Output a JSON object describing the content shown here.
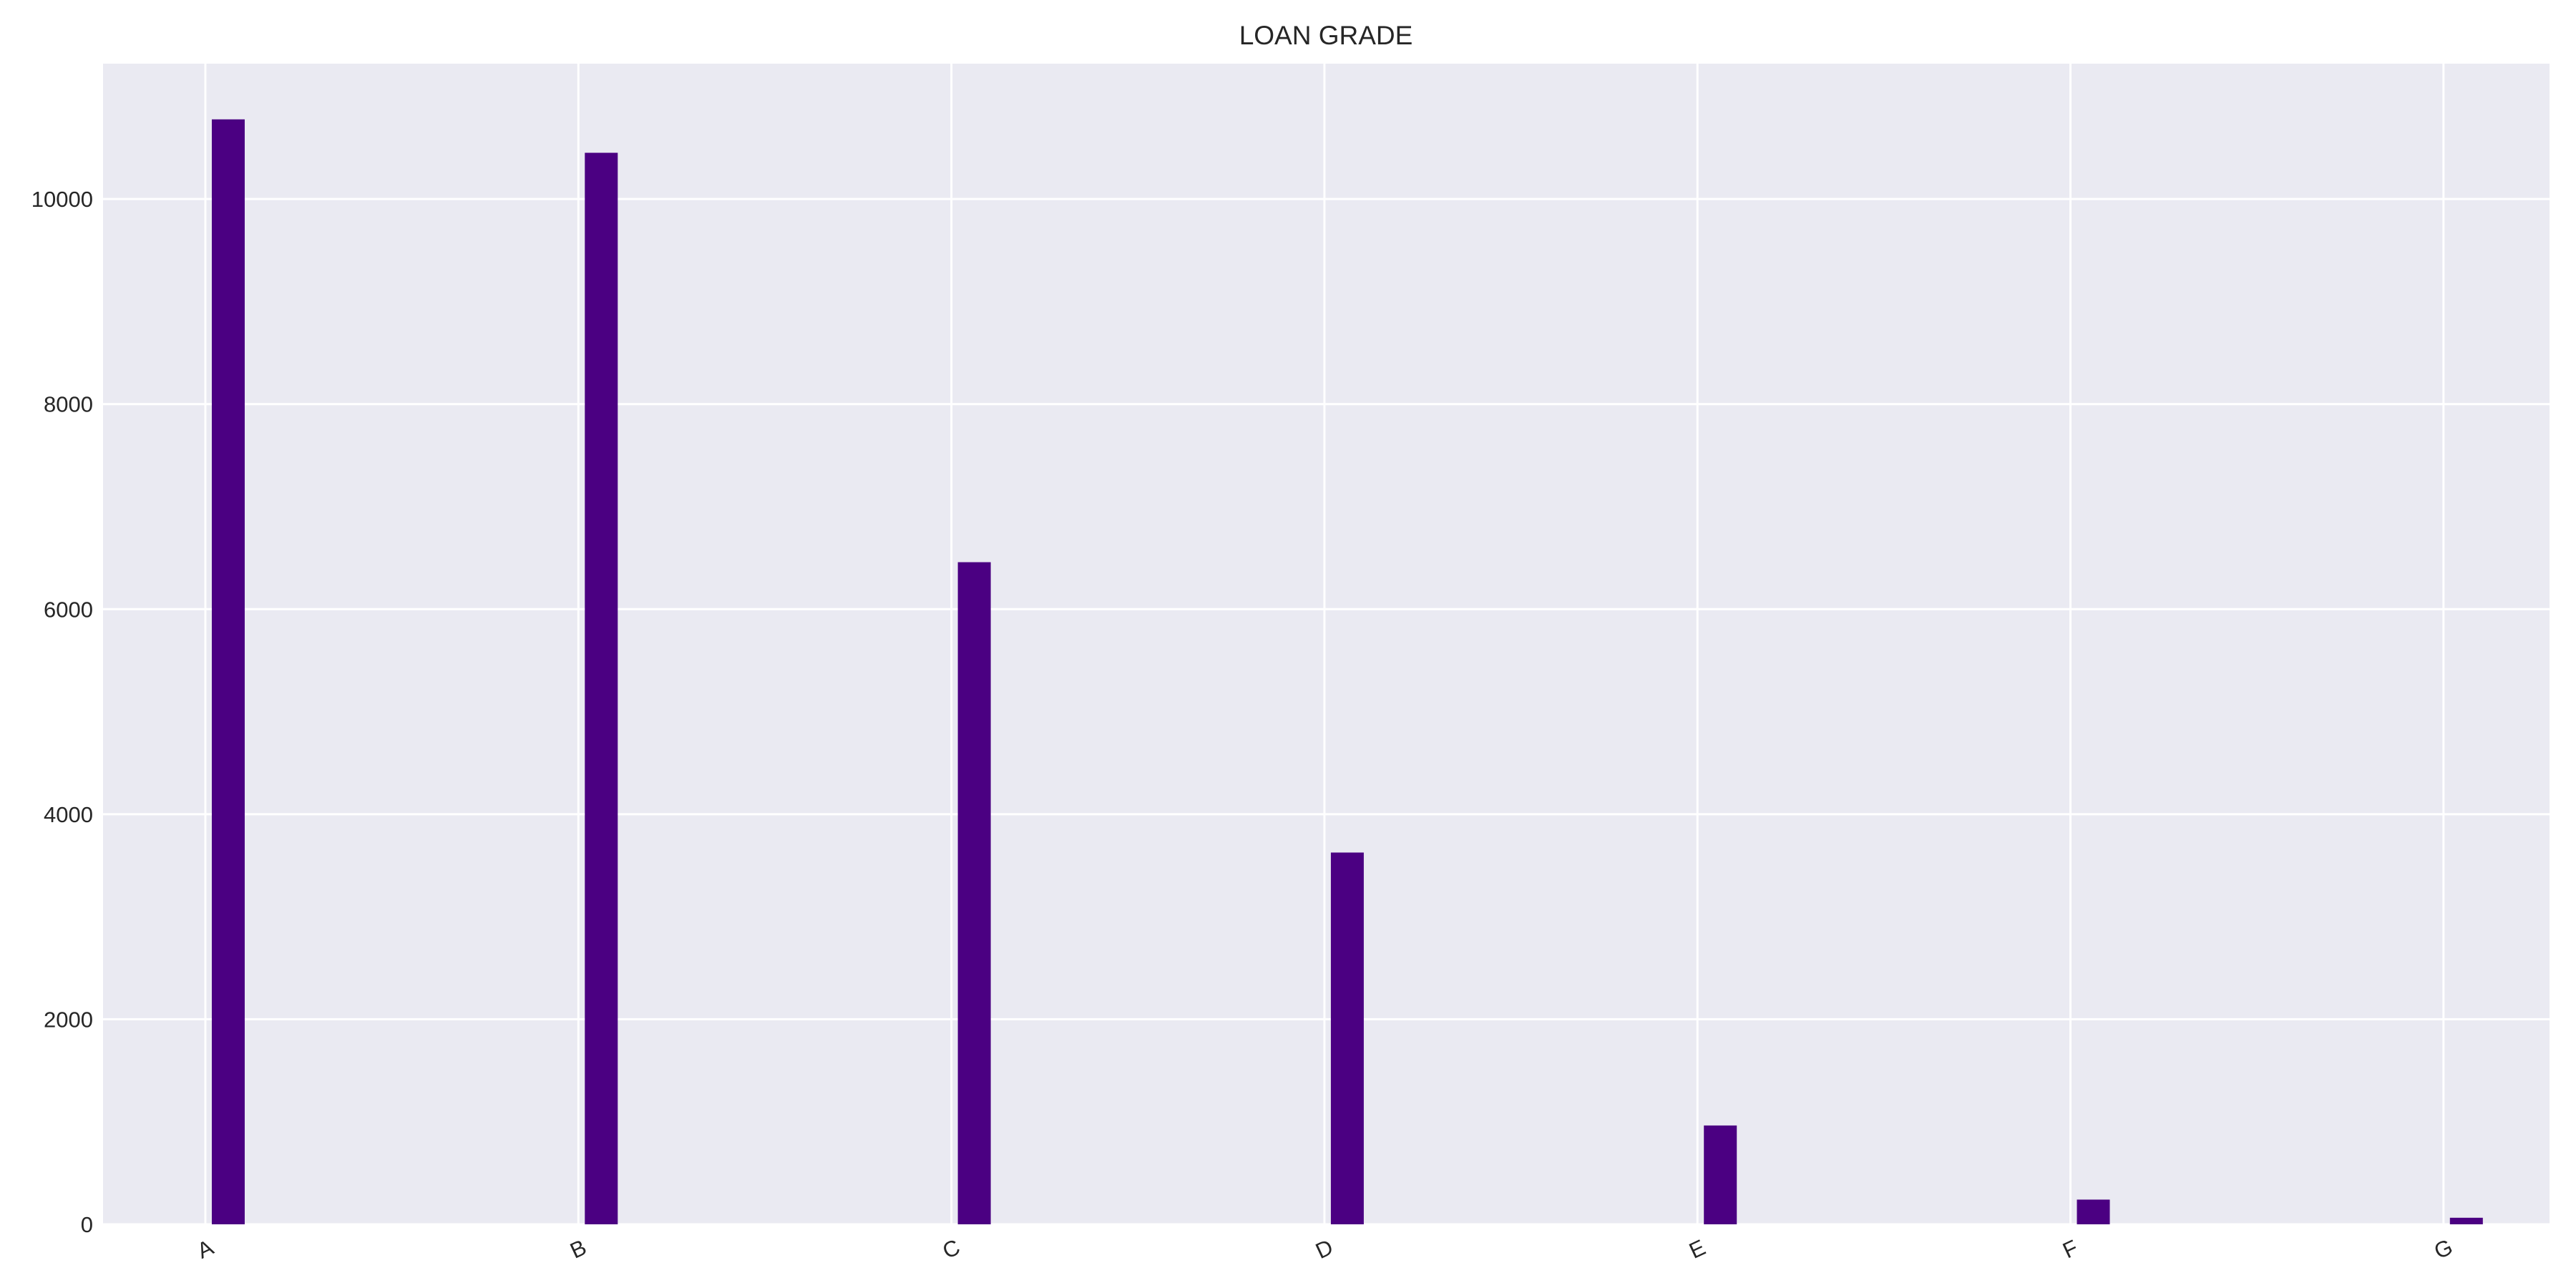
{
  "chart_data": {
    "type": "bar",
    "title": "LOAN GRADE",
    "xlabel": "",
    "ylabel": "",
    "categories": [
      "A",
      "B",
      "C",
      "D",
      "E",
      "F",
      "G"
    ],
    "values": [
      10777,
      10451,
      6458,
      3626,
      964,
      241,
      64
    ],
    "yticks": [
      "0",
      "2000",
      "4000",
      "6000",
      "8000",
      "10000"
    ],
    "ylim": [
      0,
      11320
    ],
    "grid": true,
    "x_tick_rotation": "slanted",
    "bar_color": "#4b0082",
    "plot_background": "#eaeaf2",
    "grid_color": "#ffffff"
  }
}
